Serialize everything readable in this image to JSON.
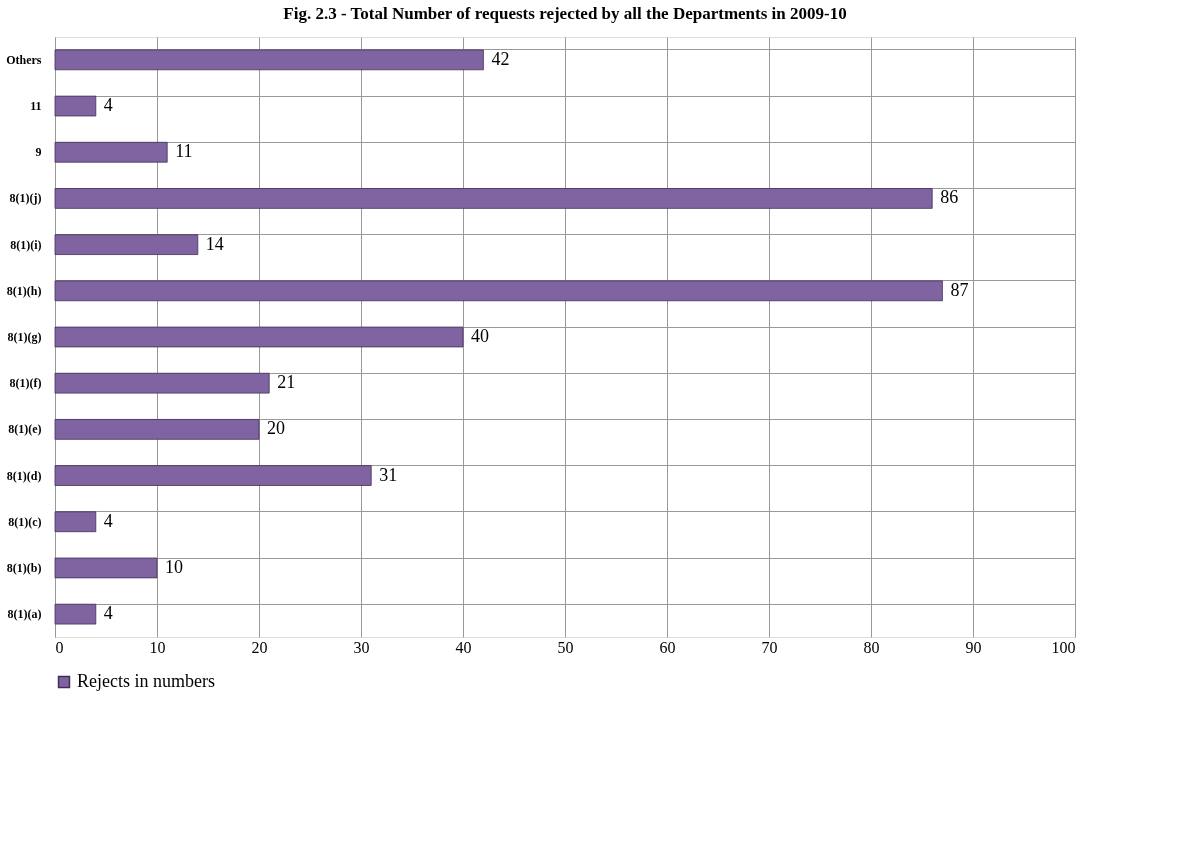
{
  "chart_data": {
    "type": "bar",
    "orientation": "horizontal",
    "title": "Fig. 2.3 - Total Number of requests rejected by all the Departments in 2009-10",
    "categories": [
      "Others",
      "11",
      "9",
      "8(1)(j)",
      "8(1)(i)",
      "8(1)(h)",
      "8(1)(g)",
      "8(1)(f)",
      "8(1)(e)",
      "8(1)(d)",
      "8(1)(c)",
      "8(1)(b)",
      "8(1)(a)"
    ],
    "series": [
      {
        "name": "Rejects in numbers",
        "color": "#8064a2",
        "values": [
          42,
          4,
          11,
          86,
          14,
          87,
          40,
          21,
          20,
          31,
          4,
          10,
          4
        ]
      }
    ],
    "xlim": [
      0,
      100
    ],
    "xticks": [
      0,
      10,
      20,
      30,
      40,
      50,
      60,
      70,
      80,
      90,
      100
    ],
    "grid": true,
    "legend": "bottom",
    "data_labels": true
  }
}
